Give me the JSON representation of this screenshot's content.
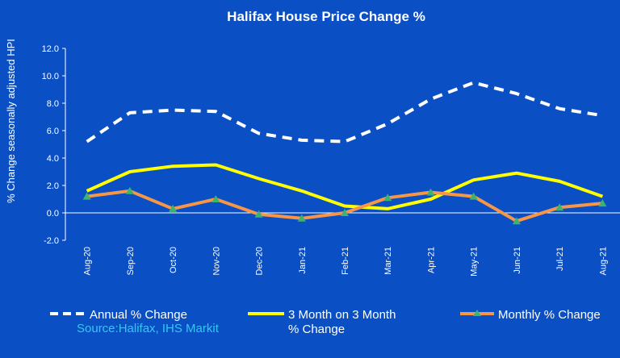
{
  "chart_data": {
    "type": "line",
    "title": "Halifax House Price Change %",
    "ylabel": "% Change seasonally adjusted HPI",
    "xlabel": "",
    "ylim": [
      -2.0,
      12.0
    ],
    "yticks": [
      "12.0",
      "10.0",
      "8.0",
      "6.0",
      "4.0",
      "2.0",
      "0.0",
      "-2.0"
    ],
    "ytick_values": [
      12,
      10,
      8,
      6,
      4,
      2,
      0,
      -2
    ],
    "categories": [
      "Aug-20",
      "Sep-20",
      "Oct-20",
      "Nov-20",
      "Dec-20",
      "Jan-21",
      "Feb-21",
      "Mar-21",
      "Apr-21",
      "May-21",
      "Jun-21",
      "Jul-21",
      "Aug-21"
    ],
    "series": [
      {
        "name": "Annual % Change",
        "values": [
          5.2,
          7.3,
          7.5,
          7.4,
          5.8,
          5.3,
          5.2,
          6.5,
          8.3,
          9.5,
          8.7,
          7.6,
          7.1
        ],
        "color": "#ffffff",
        "style": "dashed"
      },
      {
        "name": "3 Month on 3 Month % Change",
        "values": [
          1.6,
          3.0,
          3.4,
          3.5,
          2.5,
          1.6,
          0.5,
          0.3,
          1.0,
          2.4,
          2.9,
          2.3,
          1.2
        ],
        "color": "#ffff00",
        "style": "solid"
      },
      {
        "name": "Monthly % Change",
        "values": [
          1.2,
          1.6,
          0.3,
          1.0,
          -0.1,
          -0.4,
          0.0,
          1.1,
          1.5,
          1.2,
          -0.6,
          0.4,
          0.7
        ],
        "color": "#f79646",
        "style": "solid",
        "marker": "triangle",
        "marker_color": "#3cb371"
      }
    ],
    "grid": false,
    "legend_position": "bottom",
    "legend_labels": {
      "annual": "Annual % Change",
      "three_month_line1": "3 Month on 3 Month",
      "three_month_line2": "% Change",
      "monthly": "Monthly % Change"
    }
  },
  "source": "Source:Halifax, IHS Markit"
}
